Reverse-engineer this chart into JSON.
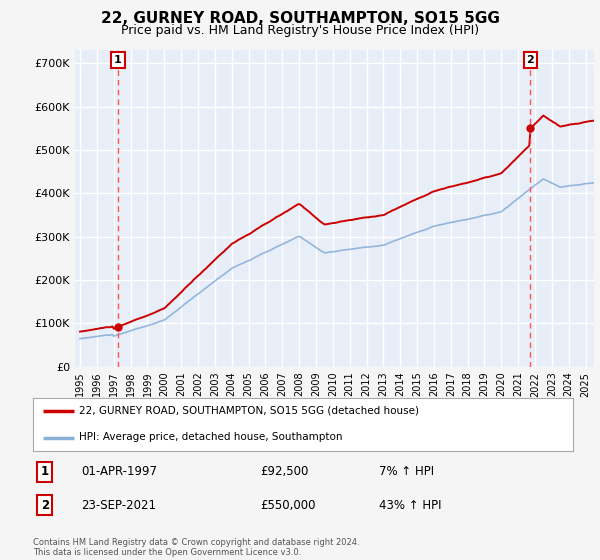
{
  "title": "22, GURNEY ROAD, SOUTHAMPTON, SO15 5GG",
  "subtitle": "Price paid vs. HM Land Registry's House Price Index (HPI)",
  "title_fontsize": 11,
  "subtitle_fontsize": 9,
  "ylabel_ticks": [
    "£0",
    "£100K",
    "£200K",
    "£300K",
    "£400K",
    "£500K",
    "£600K",
    "£700K"
  ],
  "ytick_values": [
    0,
    100000,
    200000,
    300000,
    400000,
    500000,
    600000,
    700000
  ],
  "ylim": [
    0,
    730000
  ],
  "xlim_start": 1994.7,
  "xlim_end": 2025.5,
  "background_color": "#f5f5f5",
  "plot_bg_color": "#e8eef8",
  "grid_color": "#ffffff",
  "hpi_color": "#8ab0d8",
  "price_color": "#cc0000",
  "vline_color": "#ff5555",
  "marker1_x": 1997.25,
  "marker1_y": 92500,
  "marker2_x": 2021.73,
  "marker2_y": 550000,
  "legend_label1": "22, GURNEY ROAD, SOUTHAMPTON, SO15 5GG (detached house)",
  "legend_label2": "HPI: Average price, detached house, Southampton",
  "table_data": [
    [
      "1",
      "01-APR-1997",
      "£92,500",
      "7% ↑ HPI"
    ],
    [
      "2",
      "23-SEP-2021",
      "£550,000",
      "43% ↑ HPI"
    ]
  ],
  "footer": "Contains HM Land Registry data © Crown copyright and database right 2024.\nThis data is licensed under the Open Government Licence v3.0.",
  "xtick_years": [
    1995,
    1996,
    1997,
    1998,
    1999,
    2000,
    2001,
    2002,
    2003,
    2004,
    2005,
    2006,
    2007,
    2008,
    2009,
    2010,
    2011,
    2012,
    2013,
    2014,
    2015,
    2016,
    2017,
    2018,
    2019,
    2020,
    2021,
    2022,
    2023,
    2024,
    2025
  ]
}
